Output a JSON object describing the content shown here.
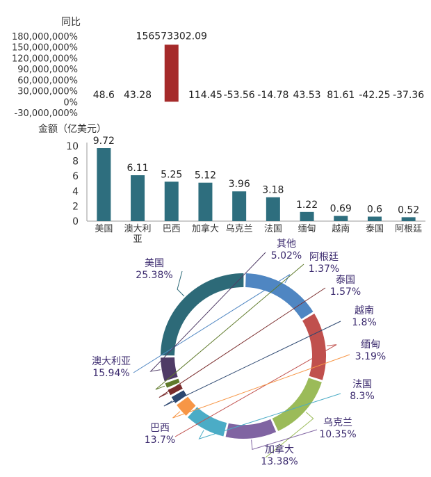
{
  "chart_data": [
    {
      "type": "bar",
      "ylabel": "同比",
      "y_ticks": [
        "180,000,000%",
        "150,000,000%",
        "120,000,000%",
        "90,000,000%",
        "60,000,000%",
        "30,000,000%",
        "0%",
        "-30,000,000%"
      ],
      "ylim": [
        -30000000,
        180000000
      ],
      "categories": [
        "美国",
        "澳大利亚",
        "巴西",
        "加拿大",
        "乌克兰",
        "法国",
        "缅甸",
        "越南",
        "泰国",
        "阿根廷"
      ],
      "values": [
        48.6,
        43.28,
        156573302.09,
        114.45,
        -53.56,
        -14.78,
        43.53,
        81.61,
        -42.25,
        -37.36
      ],
      "labels": [
        "48.6",
        "43.28",
        "156573302.09",
        "114.45",
        "-53.56",
        "-14.78",
        "43.53",
        "81.61",
        "-42.25",
        "-37.36"
      ],
      "colors": {
        "highlight": "#a52a2a"
      }
    },
    {
      "type": "bar",
      "ylabel": "金额（亿美元）",
      "ylim": [
        0,
        10
      ],
      "y_ticks": [
        "0",
        "2",
        "4",
        "6",
        "8",
        "10"
      ],
      "categories": [
        "美国",
        "澳大利亚",
        "巴西",
        "加拿大",
        "乌克兰",
        "法国",
        "缅甸",
        "越南",
        "泰国",
        "阿根廷"
      ],
      "values": [
        9.72,
        6.11,
        5.25,
        5.12,
        3.96,
        3.18,
        1.22,
        0.69,
        0.6,
        0.52
      ],
      "labels": [
        "9.72",
        "6.11",
        "5.25",
        "5.12",
        "3.96",
        "3.18",
        "1.22",
        "0.69",
        "0.6",
        "0.52"
      ],
      "colors": {
        "bar": "#2e6e7e"
      }
    },
    {
      "type": "pie",
      "variant": "donut",
      "slices": [
        {
          "name": "美国",
          "value": 25.38,
          "label": "25.38%",
          "color": "#2d6a78"
        },
        {
          "name": "澳大利亚",
          "value": 15.94,
          "label": "15.94%",
          "color": "#4f86c2"
        },
        {
          "name": "巴西",
          "value": 13.7,
          "label": "13.7%",
          "color": "#c0504d"
        },
        {
          "name": "加拿大",
          "value": 13.38,
          "label": "13.38%",
          "color": "#9bbb59"
        },
        {
          "name": "乌克兰",
          "value": 10.35,
          "label": "10.35%",
          "color": "#8064a2"
        },
        {
          "name": "法国",
          "value": 8.3,
          "label": "8.3%",
          "color": "#4bacc6"
        },
        {
          "name": "缅甸",
          "value": 3.19,
          "label": "3.19%",
          "color": "#f79646"
        },
        {
          "name": "越南",
          "value": 1.8,
          "label": "1.8%",
          "color": "#2c4770"
        },
        {
          "name": "泰国",
          "value": 1.57,
          "label": "1.57%",
          "color": "#7a2c2c"
        },
        {
          "name": "阿根廷",
          "value": 1.37,
          "label": "1.37%",
          "color": "#5f7a2a"
        },
        {
          "name": "其他",
          "value": 5.02,
          "label": "5.02%",
          "color": "#4f3b66"
        }
      ]
    }
  ]
}
